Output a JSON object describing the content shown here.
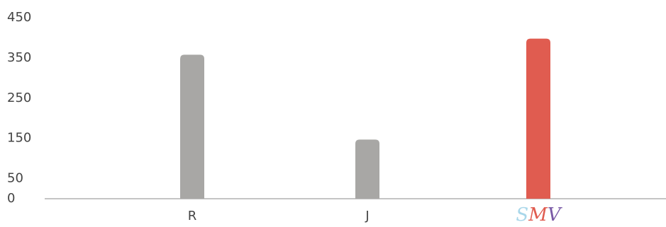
{
  "chart_data": {
    "type": "bar",
    "title": "",
    "xlabel": "",
    "ylabel": "",
    "categories": [
      "R",
      "J",
      "SMV"
    ],
    "values": [
      358,
      147,
      398
    ],
    "ylim": [
      0,
      450
    ],
    "yticks": [
      0,
      50,
      150,
      250,
      350,
      450
    ],
    "grid": false,
    "legend": "none",
    "colors": {
      "default_bar": "#a8a7a5",
      "highlight_bar": "#e05c50",
      "axis_line": "#888888",
      "logo_s": "#a9d7ea",
      "logo_m": "#e05c50",
      "logo_v": "#7a5aa6"
    },
    "highlight_category": "SMV",
    "category_logos": {
      "SMV": [
        "S",
        "M",
        "V"
      ]
    }
  }
}
